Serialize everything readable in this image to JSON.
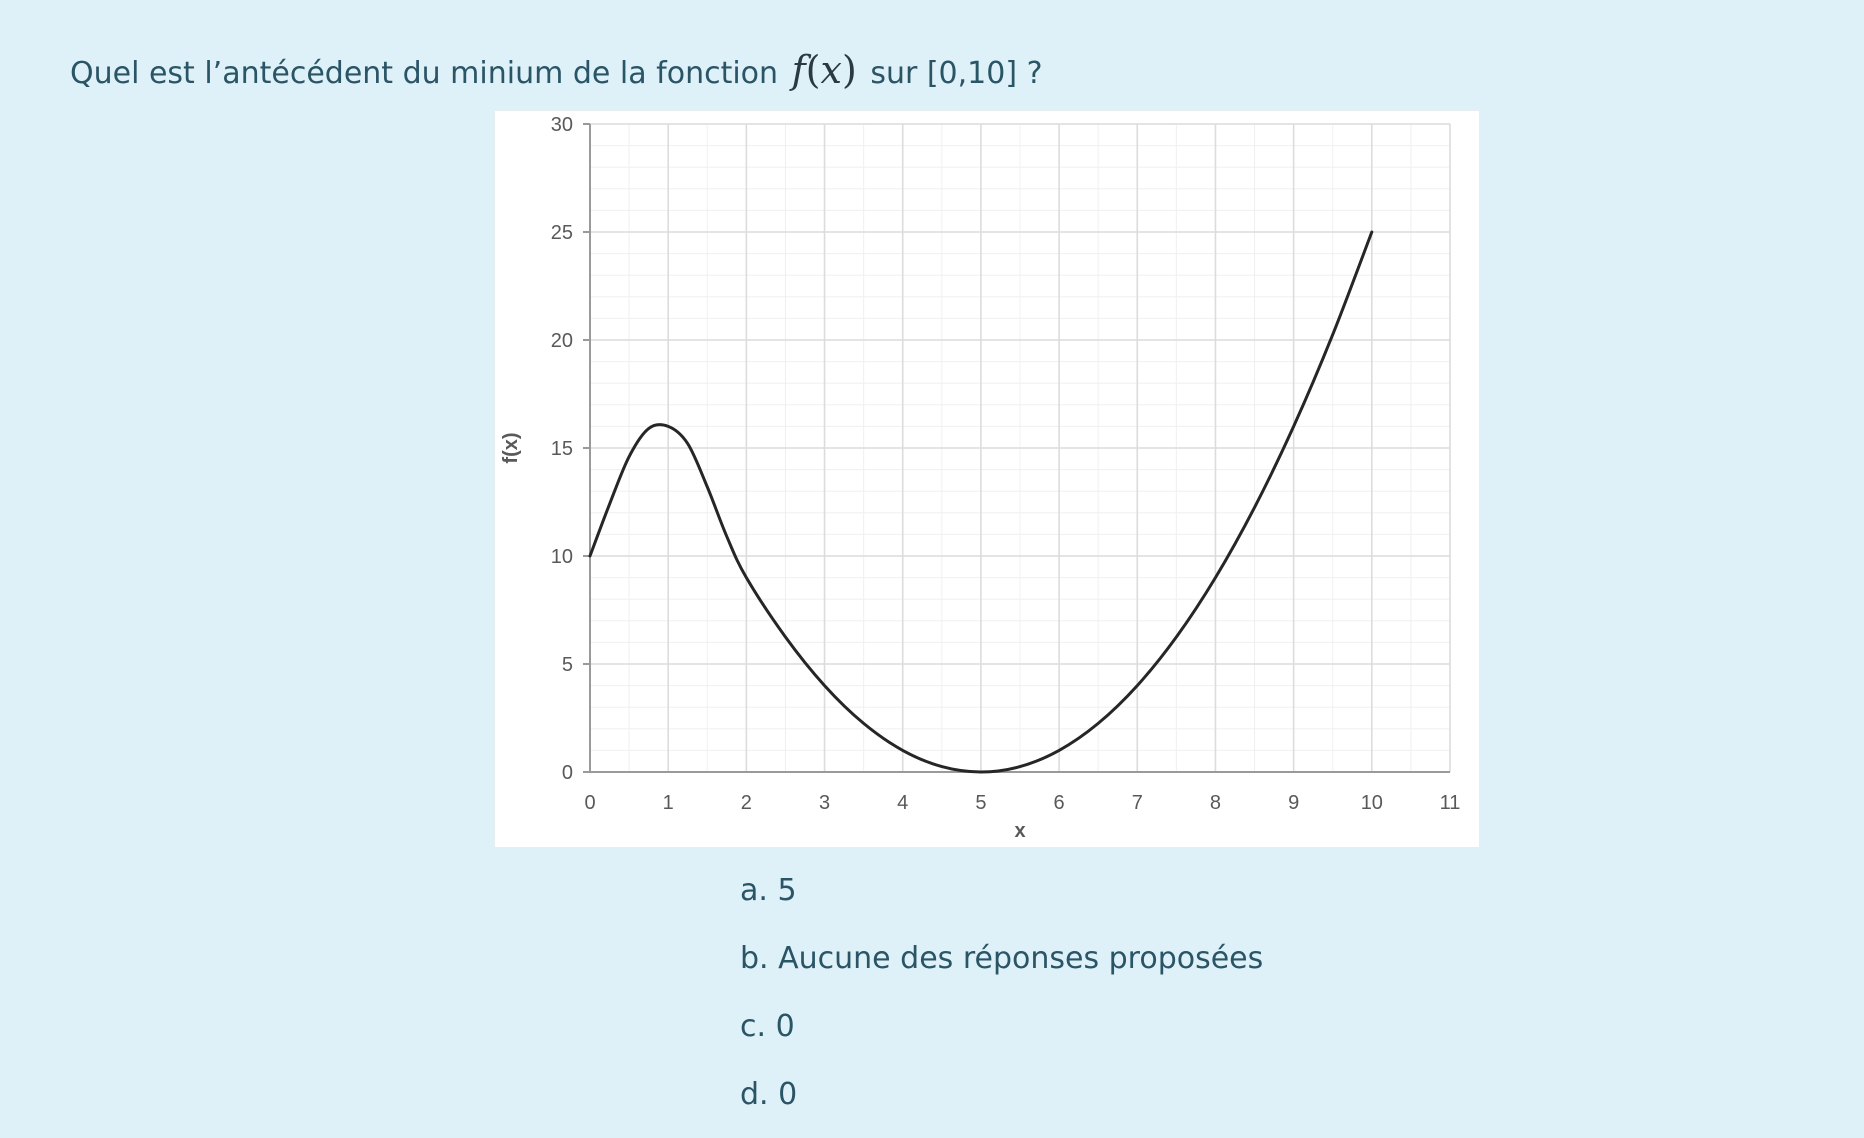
{
  "question": {
    "prefix": "Quel est l’antécédent du minium de la fonction",
    "fn_name": "f",
    "fn_open": "(",
    "fn_var": "x",
    "fn_close": ")",
    "suffix": "sur [0,10] ?"
  },
  "answers": [
    {
      "label": "a. 5"
    },
    {
      "label": "b. Aucune des réponses proposées"
    },
    {
      "label": "c. 0"
    },
    {
      "label": "d. 0"
    }
  ],
  "chart_data": {
    "type": "line",
    "xlabel": "x",
    "ylabel": "f(x)",
    "xlim": [
      0,
      11
    ],
    "ylim": [
      0,
      30
    ],
    "x_ticks": [
      0,
      1,
      2,
      3,
      4,
      5,
      6,
      7,
      8,
      9,
      10,
      11
    ],
    "y_ticks": [
      0,
      5,
      10,
      15,
      20,
      25,
      30
    ],
    "grid": true,
    "series": [
      {
        "color": "#262626",
        "x": [
          0,
          0.25,
          0.5,
          0.75,
          1,
          1.25,
          1.5,
          1.75,
          2,
          2.5,
          3,
          3.5,
          4,
          4.5,
          5,
          5.5,
          6,
          6.5,
          7,
          7.5,
          8,
          8.5,
          9,
          9.5,
          10
        ],
        "y": [
          10,
          12.4,
          14.6,
          15.9,
          16,
          15.2,
          13.2,
          10.9,
          9,
          6.25,
          4,
          2.25,
          1,
          0.25,
          0,
          0.25,
          1,
          2.25,
          4,
          6.25,
          9,
          12.25,
          16,
          20.25,
          25
        ]
      }
    ]
  }
}
